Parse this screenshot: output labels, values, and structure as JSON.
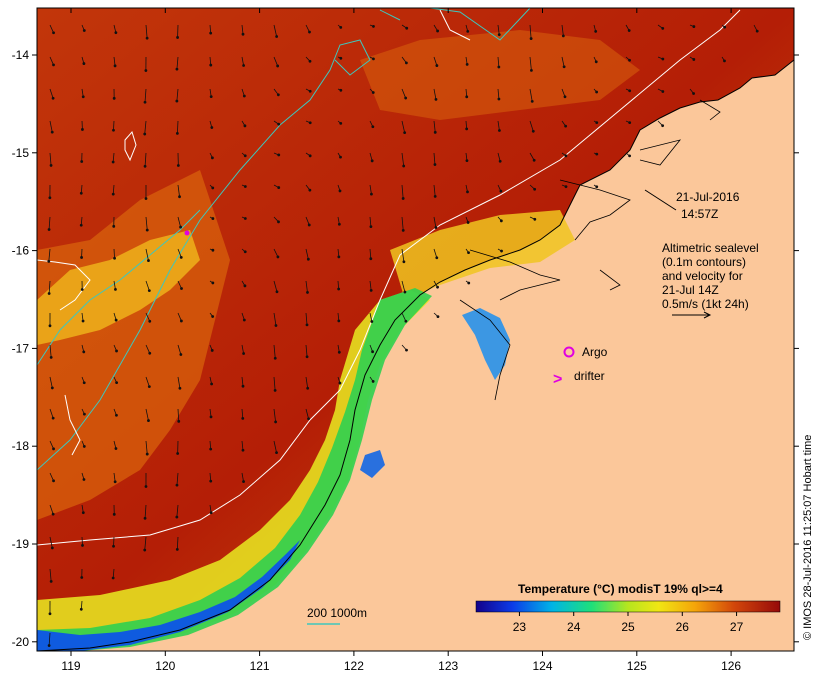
{
  "map": {
    "timestamp_date": "21-Jul-2016",
    "timestamp_time": "14:57Z",
    "legend_lines": [
      "Altimetric sealevel",
      "(0.1m contours)",
      "and velocity for",
      "21-Jul 14Z",
      "0.5m/s (1kt 24h)"
    ],
    "argo_label": "Argo",
    "drifter_label": "drifter",
    "drifter_glyph": ">",
    "depth_legend": "200  1000m",
    "credit": "© IMOS 28-Jul-2016 11:25:07 Hobart time",
    "lon_ticks": [
      "119",
      "120",
      "121",
      "122",
      "123",
      "124",
      "125",
      "126"
    ],
    "lat_ticks": [
      "-14",
      "-15",
      "-16",
      "-17",
      "-18",
      "-19",
      "-20"
    ],
    "colorbar": {
      "title": "Temperature (°C) modisT 19% ql>=4",
      "tick_labels": [
        "23",
        "24",
        "25",
        "26",
        "27"
      ],
      "range": [
        22.2,
        27.8
      ]
    },
    "colors": {
      "land": "#fbc79a",
      "sea_warm": "#a81405",
      "sea_mid": "#d25a0b",
      "sea_cool": "#f0c418",
      "argo": "#e000e0",
      "drifter": "#e000e0",
      "contour_200m": "#3ec7bd",
      "sealevel_contour": "#ffffff"
    }
  }
}
